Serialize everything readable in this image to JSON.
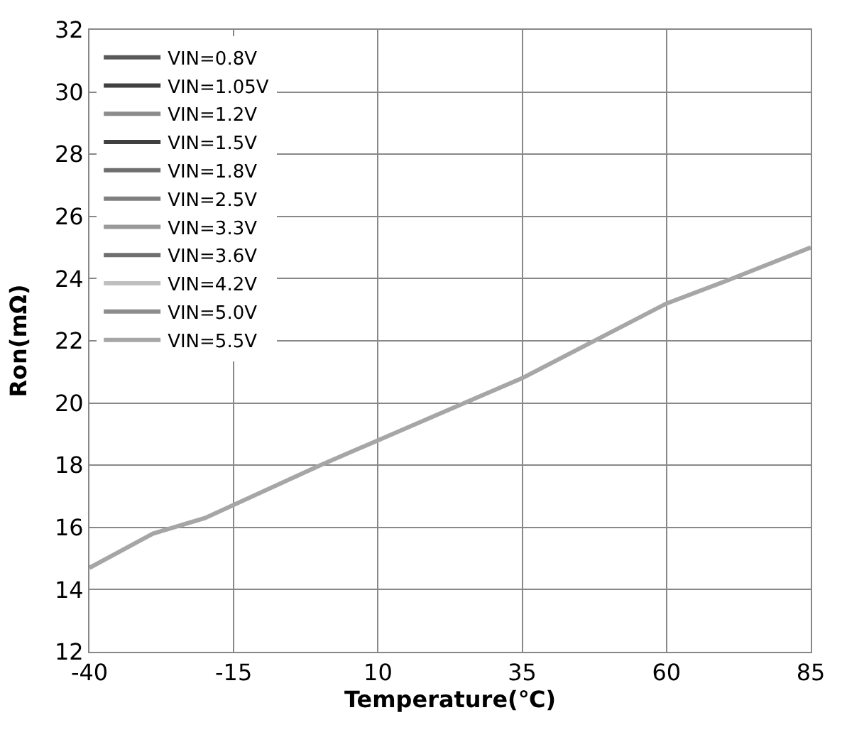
{
  "chart_data": {
    "type": "line",
    "xlabel": "Temperature(℃)",
    "ylabel": "Ron(mΩ)",
    "x": [
      -40,
      -29,
      -20,
      0,
      25,
      35,
      60,
      70,
      85
    ],
    "series": [
      {
        "name": "VIN=0.8V",
        "color": "#595959",
        "values": [
          null,
          null,
          null,
          null,
          null,
          null,
          null,
          null,
          null
        ]
      },
      {
        "name": "VIN=1.05V",
        "color": "#404040",
        "values": [
          null,
          null,
          null,
          null,
          null,
          null,
          null,
          null,
          null
        ]
      },
      {
        "name": "VIN=1.2V",
        "color": "#8c8c8c",
        "values": [
          null,
          null,
          null,
          null,
          null,
          null,
          null,
          null,
          null
        ]
      },
      {
        "name": "VIN=1.5V",
        "color": "#404040",
        "values": [
          null,
          null,
          null,
          null,
          null,
          null,
          null,
          null,
          null
        ]
      },
      {
        "name": "VIN=1.8V",
        "color": "#6e6e6e",
        "values": [
          null,
          null,
          null,
          null,
          null,
          null,
          null,
          null,
          null
        ]
      },
      {
        "name": "VIN=2.5V",
        "color": "#7f7f7f",
        "values": [
          null,
          null,
          null,
          null,
          null,
          null,
          null,
          null,
          null
        ]
      },
      {
        "name": "VIN=3.3V",
        "color": "#999999",
        "values": [
          null,
          null,
          null,
          null,
          null,
          null,
          null,
          null,
          null
        ]
      },
      {
        "name": "VIN=3.6V",
        "color": "#6e6e6e",
        "values": [
          null,
          null,
          null,
          null,
          null,
          null,
          null,
          null,
          null
        ]
      },
      {
        "name": "VIN=4.2V",
        "color": "#bfbfbf",
        "values": [
          null,
          null,
          null,
          null,
          null,
          null,
          null,
          null,
          null
        ]
      },
      {
        "name": "VIN=5.0V",
        "color": "#8c8c8c",
        "values": [
          null,
          null,
          null,
          null,
          null,
          null,
          null,
          null,
          null
        ]
      },
      {
        "name": "VIN=5.5V",
        "color": "#a6a6a6",
        "values": [
          14.7,
          15.8,
          16.3,
          18.0,
          20.0,
          20.8,
          23.2,
          23.9,
          25.0
        ]
      }
    ],
    "xlim": [
      -40,
      85
    ],
    "xticks": [
      -40,
      -15,
      10,
      35,
      60,
      85
    ],
    "ylim": [
      12,
      32
    ],
    "yticks": [
      12,
      14,
      16,
      18,
      20,
      22,
      24,
      26,
      28,
      30,
      32
    ],
    "grid": true,
    "legend": "top left",
    "marker": "none",
    "line_style": "solid"
  }
}
